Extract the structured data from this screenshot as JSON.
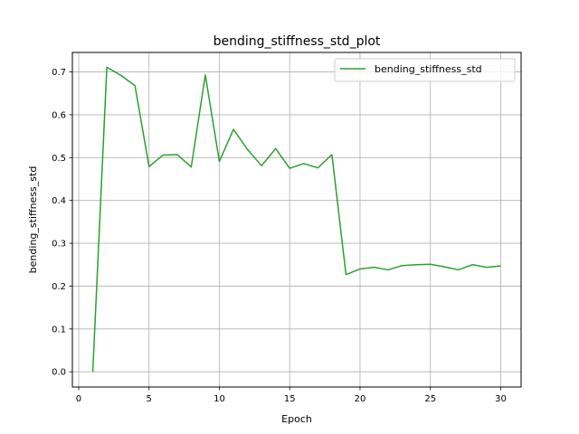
{
  "chart_data": {
    "type": "line",
    "title": "bending_stiffness_std_plot",
    "xlabel": "Epoch",
    "ylabel": "bending_stiffness_std",
    "xlim": [
      -0.45,
      31.45
    ],
    "ylim": [
      -0.0355,
      0.7455
    ],
    "xticks": [
      0,
      5,
      10,
      15,
      20,
      25,
      30
    ],
    "yticks": [
      0.0,
      0.1,
      0.2,
      0.3,
      0.4,
      0.5,
      0.6,
      0.7
    ],
    "xtick_labels": [
      "0",
      "5",
      "10",
      "15",
      "20",
      "25",
      "30"
    ],
    "ytick_labels": [
      "0.0",
      "0.1",
      "0.2",
      "0.3",
      "0.4",
      "0.5",
      "0.6",
      "0.7"
    ],
    "grid": true,
    "legend_position": "top-right",
    "series": [
      {
        "name": "bending_stiffness_std",
        "color": "#2ca02c",
        "x": [
          1,
          2,
          3,
          4,
          5,
          6,
          7,
          8,
          9,
          10,
          11,
          12,
          13,
          14,
          15,
          16,
          17,
          18,
          19,
          20,
          21,
          22,
          23,
          24,
          25,
          26,
          27,
          28,
          29,
          30
        ],
        "y": [
          0.0,
          0.711,
          0.692,
          0.668,
          0.479,
          0.506,
          0.507,
          0.478,
          0.693,
          0.491,
          0.566,
          0.519,
          0.481,
          0.521,
          0.475,
          0.486,
          0.476,
          0.507,
          0.227,
          0.24,
          0.244,
          0.238,
          0.248,
          0.25,
          0.251,
          0.245,
          0.238,
          0.25,
          0.244,
          0.247
        ]
      }
    ]
  }
}
